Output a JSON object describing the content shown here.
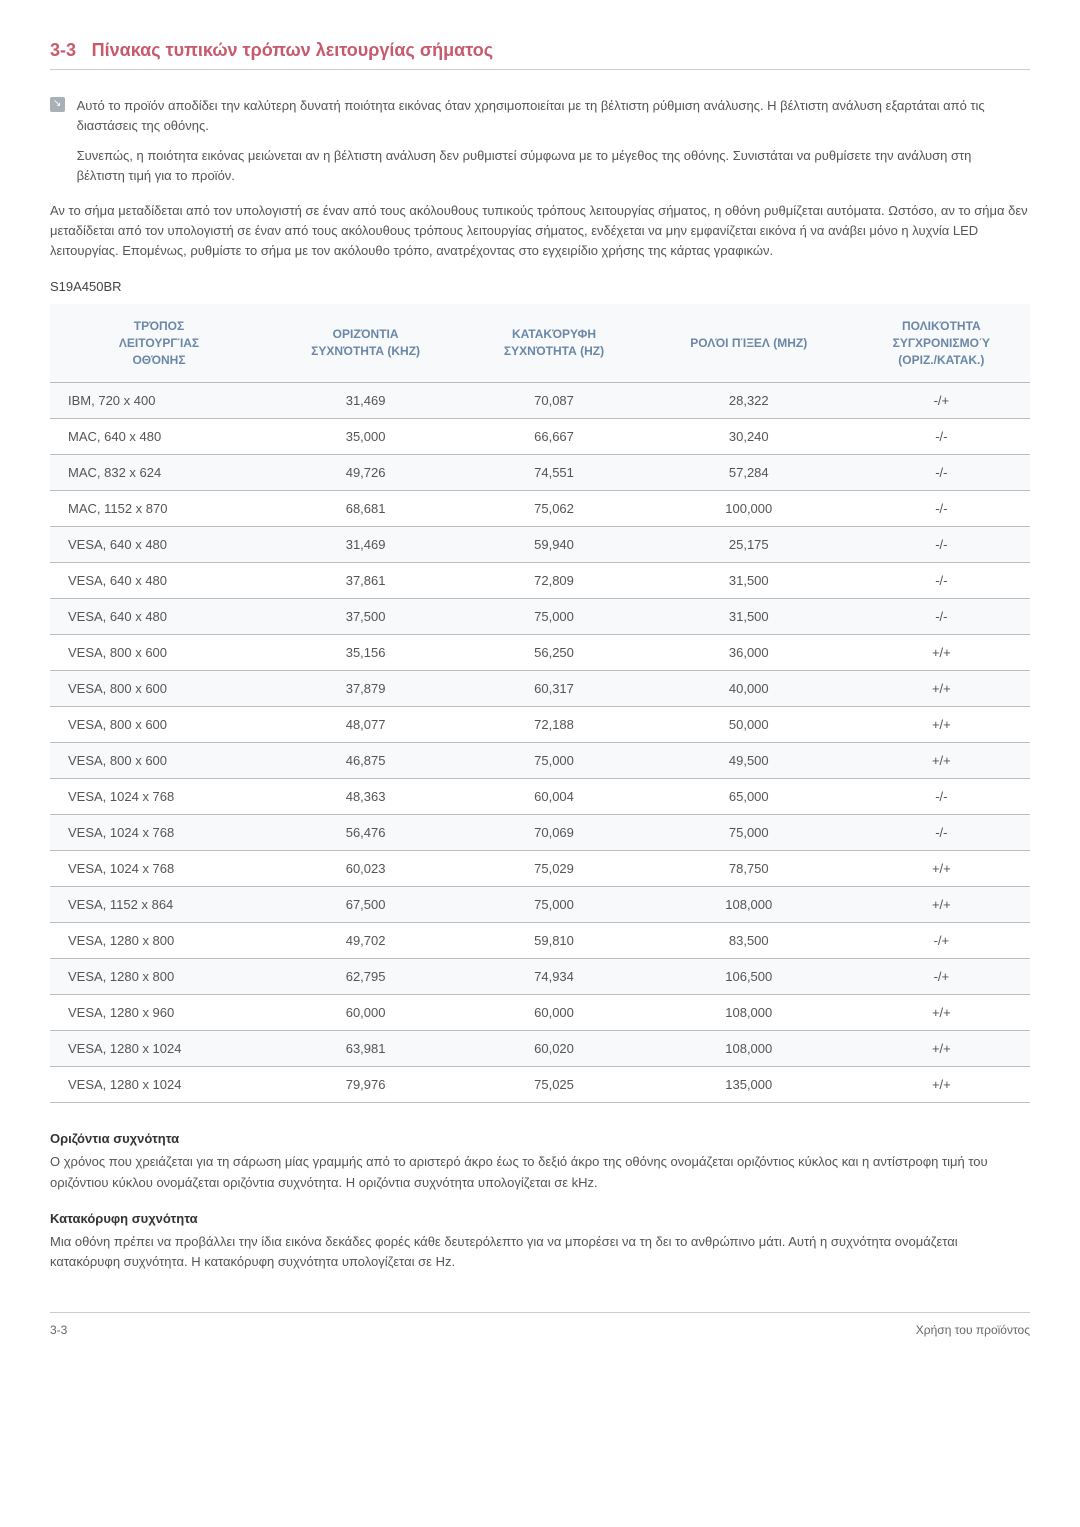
{
  "header": {
    "num": "3-3",
    "title": "Πίνακας τυπικών τρόπων λειτουργίας σήματος"
  },
  "note": {
    "p1": "Αυτό το προϊόν αποδίδει την καλύτερη δυνατή ποιότητα εικόνας όταν χρησιμοποιείται με τη βέλτιστη ρύθμιση ανάλυσης. Η βέλτιστη ανάλυση εξαρτάται από τις διαστάσεις της οθόνης.",
    "p2": "Συνεπώς, η ποιότητα εικόνας μειώνεται αν η βέλτιστη ανάλυση δεν ρυθμιστεί σύμφωνα με το μέγεθος της οθόνης. Συνιστάται να ρυθμίσετε την ανάλυση στη βέλτιστη τιμή για το προϊόν."
  },
  "intro": "Αν το σήμα μεταδίδεται από τον υπολογιστή σε έναν από τους ακόλουθους τυπικούς τρόπους λειτουργίας σήματος, η οθόνη ρυθμίζεται αυτόματα. Ωστόσο, αν το σήμα δεν μεταδίδεται από τον υπολογιστή σε έναν από τους ακόλουθους τρόπους λειτουργίας σήματος, ενδέχεται να μην εμφανίζεται εικόνα ή να ανάβει μόνο η λυχνία LED λειτουργίας. Επομένως, ρυθμίστε το σήμα με τον ακόλουθο τρόπο, ανατρέχοντας στο εγχειρίδιο χρήσης της κάρτας γραφικών.",
  "model": "S19A450BR",
  "table": {
    "headers": {
      "c1a": "ΤΡΌΠΟΣ",
      "c1b": "ΛΕΙΤΟΥΡΓΊΑΣ",
      "c1c": "ΟΘΌΝΗΣ",
      "c2a": "ΟΡΙΖΌΝΤΙΑ",
      "c2b": "ΣΥΧΝΌΤΗΤΑ (KHZ)",
      "c3a": "ΚΑΤΑΚΌΡΥΦΗ",
      "c3b": "ΣΥΧΝΌΤΗΤΑ (HZ)",
      "c4": "ΡΟΛΌΙ ΠΊΞΕΛ (MHZ)",
      "c5a": "ΠΟΛΙΚΌΤΗΤΑ",
      "c5b": "ΣΥΓΧΡΟΝΙΣΜΟΎ",
      "c5c": "(ΟΡΙΖ./ΚΑΤΑΚ.)"
    },
    "rows": [
      {
        "c1": "IBM, 720 x 400",
        "c2": "31,469",
        "c3": "70,087",
        "c4": "28,322",
        "c5": "-/+"
      },
      {
        "c1": "MAC, 640 x 480",
        "c2": "35,000",
        "c3": "66,667",
        "c4": "30,240",
        "c5": "-/-"
      },
      {
        "c1": "MAC, 832 x 624",
        "c2": "49,726",
        "c3": "74,551",
        "c4": "57,284",
        "c5": "-/-"
      },
      {
        "c1": "MAC, 1152 x 870",
        "c2": "68,681",
        "c3": "75,062",
        "c4": "100,000",
        "c5": "-/-"
      },
      {
        "c1": "VESA, 640 x 480",
        "c2": "31,469",
        "c3": "59,940",
        "c4": "25,175",
        "c5": "-/-"
      },
      {
        "c1": "VESA, 640 x 480",
        "c2": "37,861",
        "c3": "72,809",
        "c4": "31,500",
        "c5": "-/-"
      },
      {
        "c1": "VESA, 640 x 480",
        "c2": "37,500",
        "c3": "75,000",
        "c4": "31,500",
        "c5": "-/-"
      },
      {
        "c1": "VESA, 800 x 600",
        "c2": "35,156",
        "c3": "56,250",
        "c4": "36,000",
        "c5": "+/+"
      },
      {
        "c1": "VESA, 800 x 600",
        "c2": "37,879",
        "c3": "60,317",
        "c4": "40,000",
        "c5": "+/+"
      },
      {
        "c1": "VESA, 800 x 600",
        "c2": "48,077",
        "c3": "72,188",
        "c4": "50,000",
        "c5": "+/+"
      },
      {
        "c1": "VESA, 800 x 600",
        "c2": "46,875",
        "c3": "75,000",
        "c4": "49,500",
        "c5": "+/+"
      },
      {
        "c1": "VESA, 1024 x 768",
        "c2": "48,363",
        "c3": "60,004",
        "c4": "65,000",
        "c5": "-/-"
      },
      {
        "c1": "VESA, 1024 x 768",
        "c2": "56,476",
        "c3": "70,069",
        "c4": "75,000",
        "c5": "-/-"
      },
      {
        "c1": "VESA, 1024 x 768",
        "c2": "60,023",
        "c3": "75,029",
        "c4": "78,750",
        "c5": "+/+"
      },
      {
        "c1": "VESA, 1152 x 864",
        "c2": "67,500",
        "c3": "75,000",
        "c4": "108,000",
        "c5": "+/+"
      },
      {
        "c1": "VESA, 1280 x 800",
        "c2": "49,702",
        "c3": "59,810",
        "c4": "83,500",
        "c5": "-/+"
      },
      {
        "c1": "VESA, 1280 x 800",
        "c2": "62,795",
        "c3": "74,934",
        "c4": "106,500",
        "c5": "-/+"
      },
      {
        "c1": "VESA, 1280 x 960",
        "c2": "60,000",
        "c3": "60,000",
        "c4": "108,000",
        "c5": "+/+"
      },
      {
        "c1": "VESA, 1280 x 1024",
        "c2": "63,981",
        "c3": "60,020",
        "c4": "108,000",
        "c5": "+/+"
      },
      {
        "c1": "VESA, 1280 x 1024",
        "c2": "79,976",
        "c3": "75,025",
        "c4": "135,000",
        "c5": "+/+"
      }
    ]
  },
  "horiz": {
    "title": "Οριζόντια συχνότητα",
    "body": "Ο χρόνος που χρειάζεται για τη σάρωση μίας γραμμής από το αριστερό άκρο έως το δεξιό άκρο της οθόνης ονομάζεται οριζόντιος κύκλος και η αντίστροφη τιμή του οριζόντιου κύκλου ονομάζεται οριζόντια συχνότητα. Η οριζόντια συχνότητα υπολογίζεται σε kHz."
  },
  "vert": {
    "title": "Κατακόρυφη συχνότητα",
    "body": "Μια οθόνη πρέπει να προβάλλει την ίδια εικόνα δεκάδες φορές κάθε δευτερόλεπτο για να μπορέσει να τη δει το ανθρώπινο μάτι. Αυτή η συχνότητα ονομάζεται κατακόρυφη συχνότητα. Η κατακόρυφη συχνότητα υπολογίζεται σε Hz."
  },
  "footer": {
    "left": "3-3",
    "right": "Χρήση του προϊόντος"
  }
}
